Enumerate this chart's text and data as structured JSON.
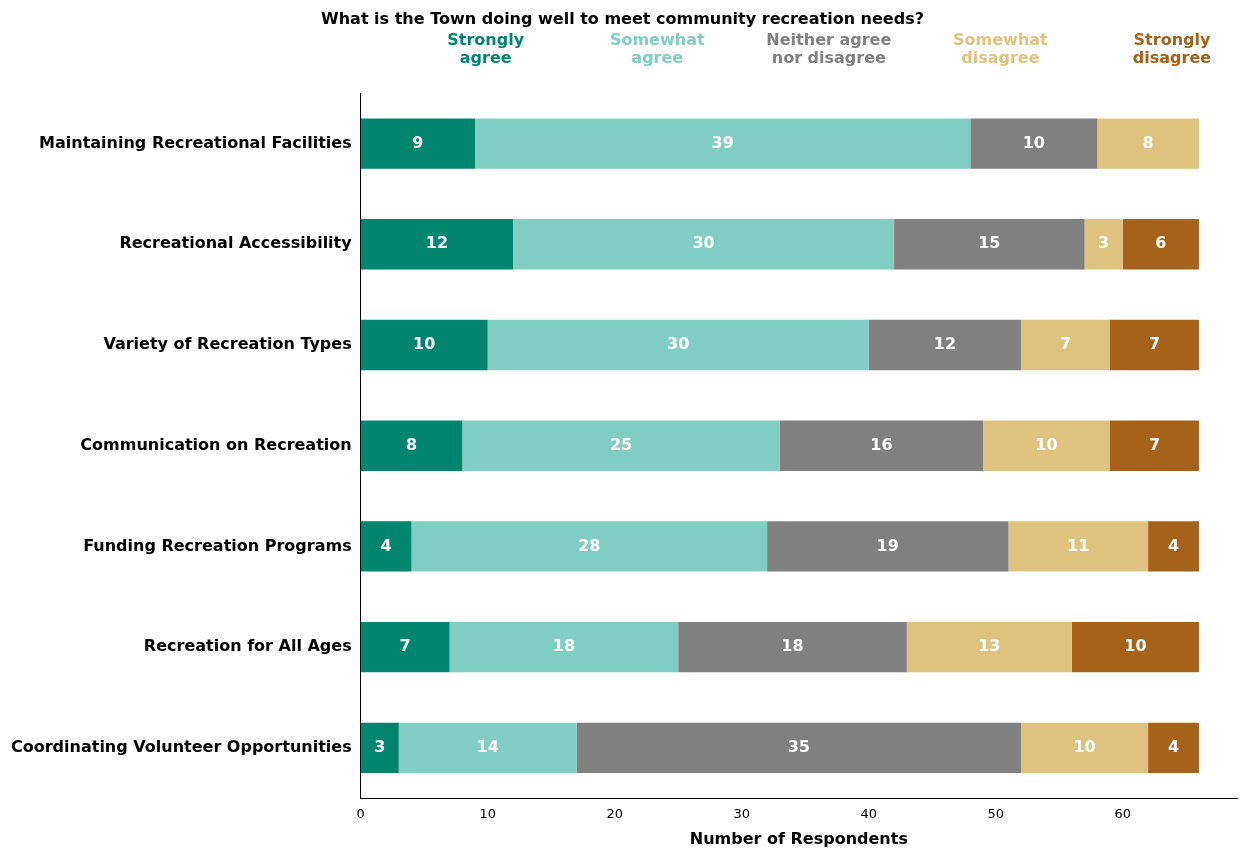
{
  "chart_data": {
    "type": "bar",
    "orientation": "horizontal",
    "stacked": true,
    "title": "What is the Town doing well to meet community recreation needs?",
    "xlabel": "Number of Respondents",
    "categories": [
      "Maintaining Recreational Facilities",
      "Recreational Accessibility",
      "Variety of Recreation Types",
      "Communication on Recreation",
      "Funding Recreation Programs",
      "Recreation for All Ages",
      "Coordinating Volunteer Opportunities"
    ],
    "series": [
      {
        "name": "Strongly agree",
        "color": "#01856f",
        "values": [
          9,
          12,
          10,
          8,
          4,
          7,
          3
        ]
      },
      {
        "name": "Somewhat agree",
        "color": "#80cdc1",
        "values": [
          39,
          30,
          30,
          25,
          28,
          18,
          14
        ]
      },
      {
        "name": "Neither agree nor disagree",
        "color": "#808080",
        "values": [
          10,
          15,
          12,
          16,
          19,
          18,
          35
        ]
      },
      {
        "name": "Somewhat disagree",
        "color": "#dfc27d",
        "values": [
          8,
          3,
          7,
          10,
          11,
          13,
          10
        ]
      },
      {
        "name": "Strongly disagree",
        "color": "#a6611a",
        "values": [
          null,
          6,
          7,
          7,
          4,
          10,
          4
        ]
      }
    ],
    "xlim": [
      0,
      69
    ],
    "xticks": [
      0,
      10,
      20,
      30,
      40,
      50,
      60
    ],
    "grid": false,
    "legend": "top",
    "data_labels": true
  }
}
